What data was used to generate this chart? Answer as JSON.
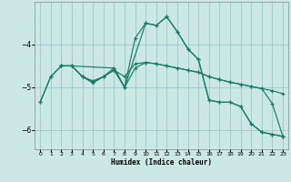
{
  "xlabel": "Humidex (Indice chaleur)",
  "background_color": "#cce8e4",
  "grid_color": "#99cccc",
  "line_color": "#1a7a66",
  "xlim": [
    -0.5,
    23.5
  ],
  "ylim": [
    -6.45,
    -3.0
  ],
  "yticks": [
    -6,
    -5,
    -4
  ],
  "xticks": [
    0,
    1,
    2,
    3,
    4,
    5,
    6,
    7,
    8,
    9,
    10,
    11,
    12,
    13,
    14,
    15,
    16,
    17,
    18,
    19,
    20,
    21,
    22,
    23
  ],
  "lines": [
    {
      "x": [
        0,
        1,
        2,
        3,
        4,
        5,
        6,
        7,
        8,
        9,
        10,
        11,
        12,
        13,
        14,
        15,
        16,
        17,
        18,
        19,
        20,
        21,
        22,
        23
      ],
      "y": [
        -5.35,
        -4.75,
        -4.5,
        -4.5,
        -4.75,
        -4.9,
        -4.75,
        -4.55,
        -5.0,
        -3.85,
        -3.5,
        -3.55,
        -3.35,
        -3.7,
        -4.1,
        -4.35,
        -5.3,
        -5.35,
        -5.35,
        -5.45,
        -5.85,
        -6.05,
        -6.1,
        -6.15
      ]
    },
    {
      "x": [
        0,
        1,
        2,
        3,
        4,
        5,
        6,
        7,
        8,
        9,
        10,
        11,
        12,
        13,
        14,
        15,
        16,
        17,
        18,
        19,
        20,
        21,
        22,
        23
      ],
      "y": [
        -5.35,
        -4.75,
        -4.5,
        -4.5,
        -4.75,
        -4.85,
        -4.75,
        -4.6,
        -4.75,
        -4.45,
        -4.42,
        -4.45,
        -4.5,
        -4.55,
        -4.6,
        -4.65,
        -4.75,
        -4.82,
        -4.88,
        -4.93,
        -4.98,
        -5.03,
        -5.08,
        -5.15
      ]
    },
    {
      "x": [
        2,
        3,
        4,
        5,
        6,
        7,
        8,
        9,
        10,
        11,
        12,
        13,
        14,
        15,
        16,
        17,
        18,
        19,
        20,
        21,
        22,
        23
      ],
      "y": [
        -4.5,
        -4.5,
        -4.75,
        -4.88,
        -4.75,
        -4.6,
        -5.0,
        -4.55,
        -4.42,
        -4.45,
        -4.5,
        -4.55,
        -4.6,
        -4.65,
        -4.75,
        -4.82,
        -4.88,
        -4.93,
        -4.98,
        -5.03,
        -5.38,
        -6.15
      ]
    },
    {
      "x": [
        2,
        3,
        7,
        8,
        10,
        11,
        12,
        13,
        14,
        15,
        16,
        17,
        18,
        19,
        20,
        21,
        22,
        23
      ],
      "y": [
        -4.5,
        -4.5,
        -4.55,
        -5.0,
        -3.5,
        -3.55,
        -3.35,
        -3.7,
        -4.1,
        -4.35,
        -5.3,
        -5.35,
        -5.35,
        -5.45,
        -5.85,
        -6.05,
        -6.1,
        -6.15
      ]
    }
  ]
}
